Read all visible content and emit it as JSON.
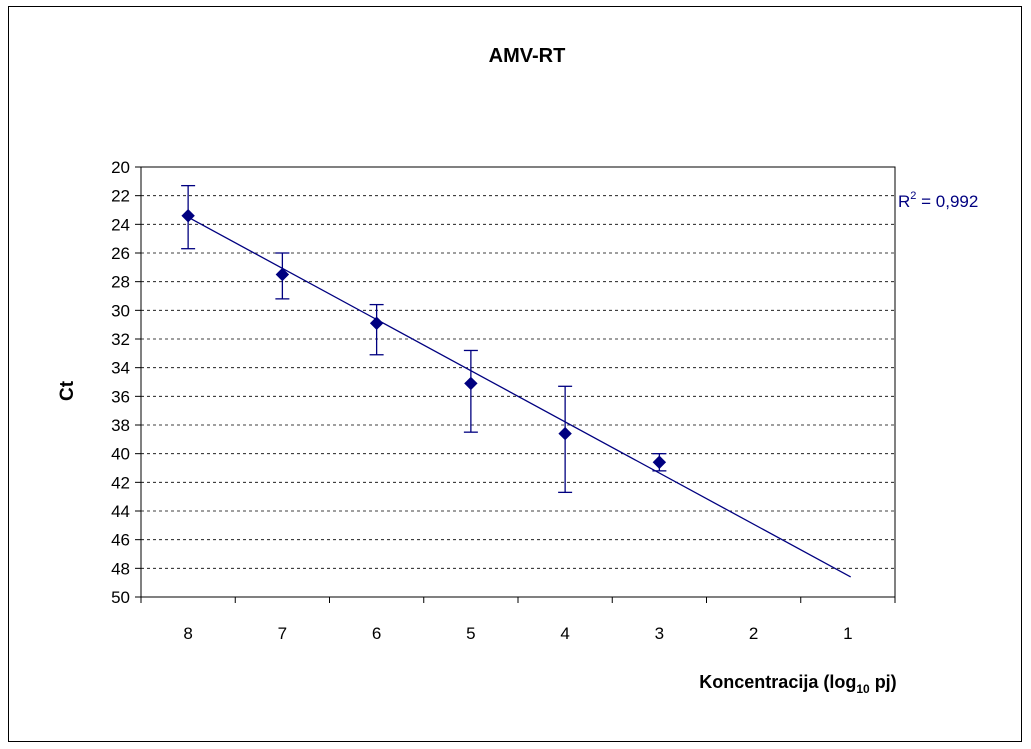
{
  "chart_data": {
    "type": "scatter",
    "title": "AMV-RT",
    "ylabel": "Ct",
    "xlabel_main": "Koncentracija (log",
    "xlabel_sub": "10",
    "xlabel_tail": " pj)",
    "x_reversed": true,
    "xlim": [
      0.5,
      8.5
    ],
    "xticks": [
      8,
      7,
      6,
      5,
      4,
      3,
      2,
      1
    ],
    "y_reversed": true,
    "ylim": [
      20,
      50
    ],
    "yticks": [
      20,
      22,
      24,
      26,
      28,
      30,
      32,
      34,
      36,
      38,
      40,
      42,
      44,
      46,
      48,
      50
    ],
    "grid": true,
    "points": [
      {
        "x": 8,
        "y": 23.4,
        "err_low": 21.3,
        "err_high": 25.7
      },
      {
        "x": 7,
        "y": 27.5,
        "err_low": 26.0,
        "err_high": 29.2
      },
      {
        "x": 6,
        "y": 30.9,
        "err_low": 29.6,
        "err_high": 33.1
      },
      {
        "x": 5,
        "y": 35.1,
        "err_low": 32.8,
        "err_high": 38.5
      },
      {
        "x": 4,
        "y": 38.6,
        "err_low": 35.3,
        "err_high": 42.7
      },
      {
        "x": 3,
        "y": 40.6,
        "err_low": 40.0,
        "err_high": 41.2
      }
    ],
    "trendline": {
      "x": [
        8,
        0.97
      ],
      "y": [
        23.5,
        48.6
      ]
    },
    "r2_label": "R",
    "r2_sup": "2",
    "r2_value": " = 0,992",
    "colors": {
      "series": "#000080",
      "grid": "#000000",
      "axis": "#000000"
    }
  }
}
